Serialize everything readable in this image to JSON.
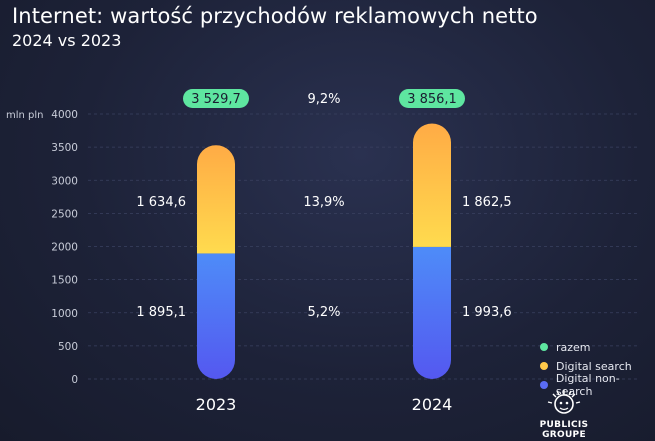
{
  "header": {
    "title": "Internet: wartość przychodów reklamowych netto",
    "subtitle": "2024 vs 2023"
  },
  "colors": {
    "razem": "#5ee6a0",
    "search_top": "#ffab45",
    "search_bottom": "#ffdb4e",
    "nonsearch_top": "#4e8cf8",
    "nonsearch_bottom": "#5458f0",
    "grid": "#3a4160",
    "tick_text": "#c8ccd8"
  },
  "chart_data": {
    "type": "bar",
    "stacked": true,
    "ylabel": "mln pln",
    "ylim": [
      0,
      4000
    ],
    "yticks": [
      "0",
      "500",
      "1000",
      "1500",
      "2000",
      "2500",
      "3000",
      "3500",
      "4000"
    ],
    "categories": [
      "2023",
      "2024"
    ],
    "series": [
      {
        "name": "Digital non-search",
        "values": [
          1895.1,
          1993.6
        ],
        "labels": [
          "1 895,1",
          "1 993,6"
        ],
        "growth": "5,2%"
      },
      {
        "name": "Digital search",
        "values": [
          1634.6,
          1862.5
        ],
        "labels": [
          "1 634,6",
          "1 862,5"
        ],
        "growth": "13,9%"
      }
    ],
    "totals": {
      "name": "razem",
      "values": [
        3529.7,
        3856.1
      ],
      "labels": [
        "3 529,7",
        "3 856,1"
      ],
      "growth": "9,2%"
    },
    "grid": true,
    "legend_position": "bottom-right"
  },
  "legend": [
    {
      "label": "razem",
      "color": "#5ee6a0"
    },
    {
      "label": "Digital search",
      "color": "#ffc94a"
    },
    {
      "label": "Digital non-search",
      "color": "#5a6cf4"
    }
  ],
  "logo": {
    "line1": "PUBLICIS",
    "line2": "GROUPE"
  }
}
